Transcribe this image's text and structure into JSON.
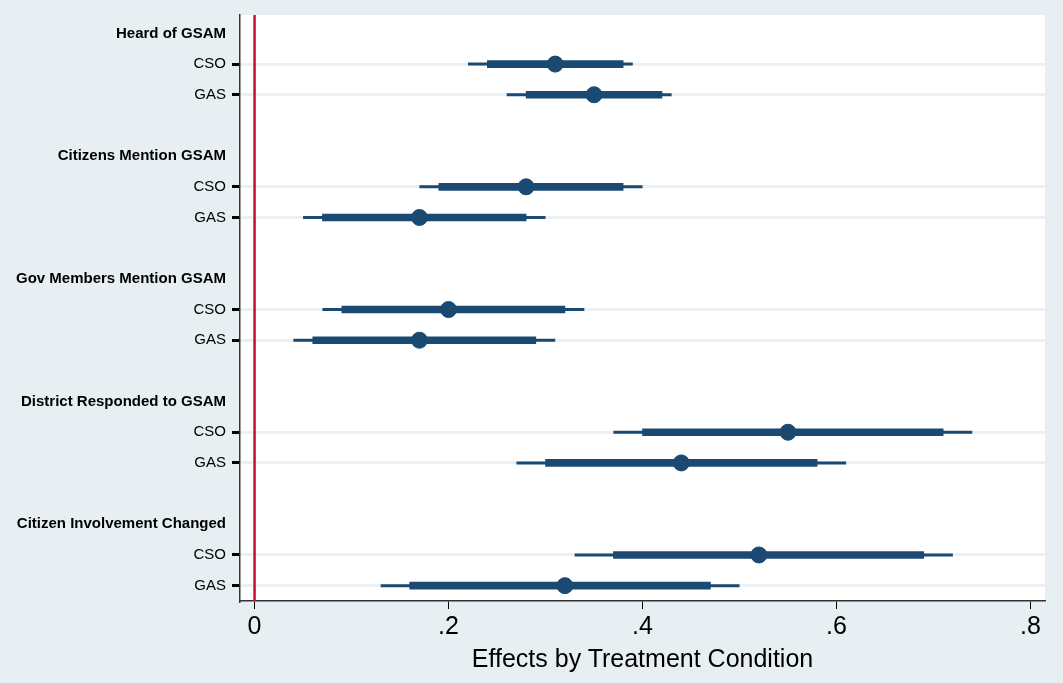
{
  "chart_data": {
    "type": "scatter",
    "orientation": "horizontal",
    "xlabel": "Effects by Treatment Condition",
    "categories": [
      "Heard of GSAM",
      "CSO",
      "GAS",
      "Citizens Mention GSAM",
      "CSO",
      "GAS",
      "Gov Members Mention GSAM",
      "CSO",
      "GAS",
      "District Responded to GSAM",
      "CSO",
      "GAS",
      "Citizen Involvement Changed",
      "CSO",
      "GAS"
    ],
    "series": [
      {
        "color": "#1a4a72",
        "marker": "circle",
        "values": [
          null,
          0.31,
          0.35,
          null,
          0.28,
          0.17,
          null,
          0.2,
          0.17,
          null,
          0.55,
          0.44,
          null,
          0.52,
          0.32
        ],
        "errors": [
          null,
          [
            0.22,
            0.39
          ],
          [
            0.26,
            0.43
          ],
          null,
          [
            0.17,
            0.4
          ],
          [
            0.05,
            0.3
          ],
          null,
          [
            0.07,
            0.34
          ],
          [
            0.04,
            0.31
          ],
          null,
          [
            0.37,
            0.74
          ],
          [
            0.27,
            0.61
          ],
          null,
          [
            0.33,
            0.72
          ],
          [
            0.13,
            0.5
          ]
        ]
      },
      {
        "type": "bar",
        "color": "#1a4a72",
        "base": [
          null,
          0.24,
          0.28,
          null,
          0.19,
          0.07,
          null,
          0.09,
          0.06,
          null,
          0.4,
          0.3,
          null,
          0.37,
          0.16
        ],
        "values": [
          null,
          0.14,
          0.14,
          null,
          0.19,
          0.21,
          null,
          0.23,
          0.23,
          null,
          0.31,
          0.28,
          null,
          0.32,
          0.31
        ]
      }
    ],
    "xlim": [
      -0.015,
      0.815
    ],
    "xticks": [
      0,
      {
        "value": 0.2,
        "label": ".2"
      },
      {
        "value": 0.4,
        "label": ".4"
      },
      {
        "value": 0.6,
        "label": ".6"
      },
      {
        "value": 0.8,
        "label": ".8"
      }
    ],
    "ref_lines": [
      {
        "axis": "x",
        "value": 0,
        "color": "#c8102e"
      }
    ],
    "grid": "y",
    "legend": false
  }
}
